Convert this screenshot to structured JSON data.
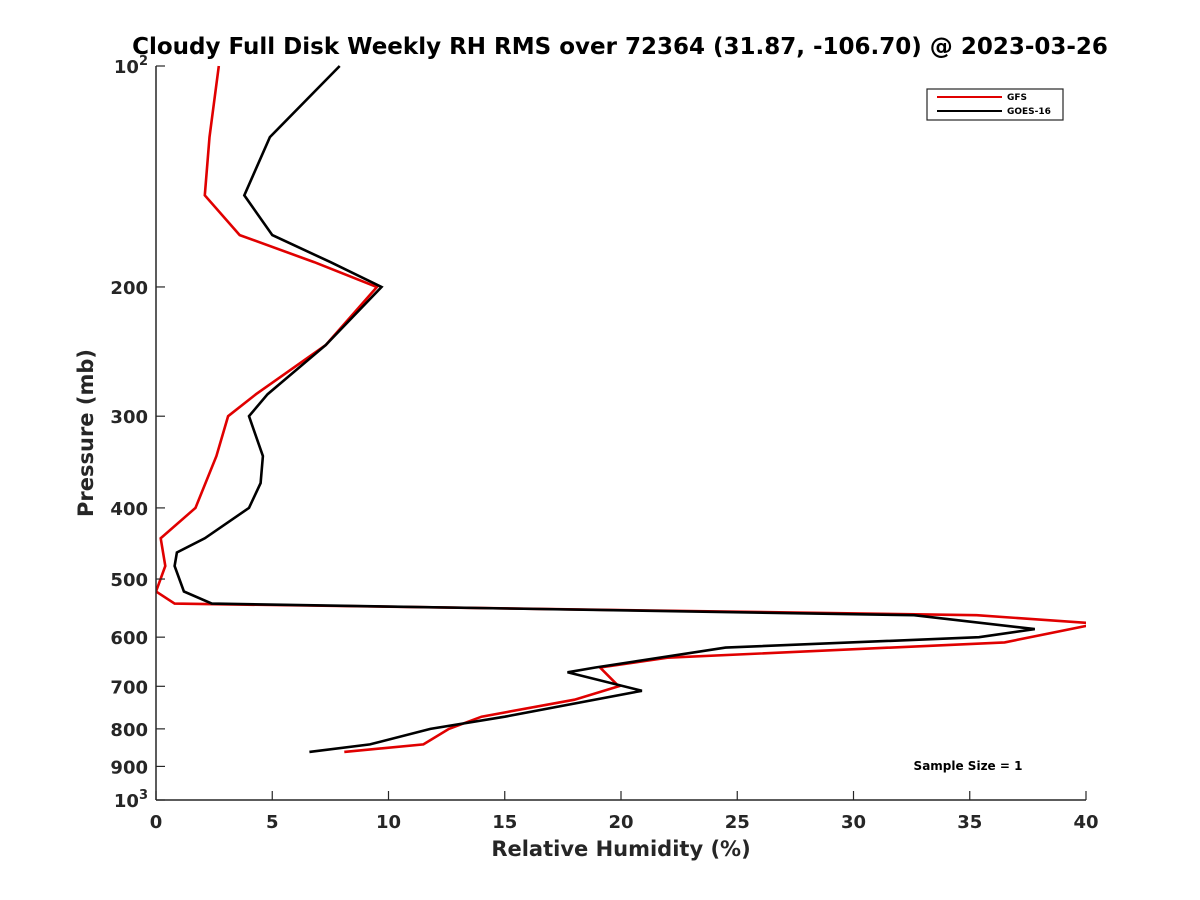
{
  "chart_data": {
    "type": "line",
    "title": "Cloudy Full Disk Weekly RH RMS over 72364 (31.87, -106.70) @ 2023-03-26",
    "xlabel": "Relative Humidity (%)",
    "ylabel": "Pressure (mb)",
    "xlim": [
      0,
      40
    ],
    "ylim": [
      100,
      1000
    ],
    "yscale": "log",
    "y_reversed": true,
    "grid": false,
    "legend_position": "top-right",
    "x_ticks": [
      0,
      5,
      10,
      15,
      20,
      25,
      30,
      35,
      40
    ],
    "y_ticks": [
      {
        "value": 100,
        "base": "10",
        "exp": "2"
      },
      {
        "value": 200,
        "label": "200"
      },
      {
        "value": 300,
        "label": "300"
      },
      {
        "value": 400,
        "label": "400"
      },
      {
        "value": 500,
        "label": "500"
      },
      {
        "value": 600,
        "label": "600"
      },
      {
        "value": 700,
        "label": "700"
      },
      {
        "value": 800,
        "label": "800"
      },
      {
        "value": 900,
        "label": "900"
      },
      {
        "value": 1000,
        "base": "10",
        "exp": "3"
      }
    ],
    "series": [
      {
        "name": "GFS",
        "color": "#e00000",
        "points": [
          [
            2.7,
            100
          ],
          [
            2.3,
            125
          ],
          [
            2.1,
            150
          ],
          [
            3.6,
            170
          ],
          [
            6.8,
            185
          ],
          [
            9.5,
            200
          ],
          [
            7.3,
            240
          ],
          [
            4.3,
            280
          ],
          [
            3.1,
            300
          ],
          [
            2.6,
            340
          ],
          [
            1.7,
            400
          ],
          [
            0.2,
            440
          ],
          [
            0.4,
            480
          ],
          [
            0.0,
            520
          ],
          [
            0.8,
            540
          ],
          [
            35.3,
            560
          ],
          [
            40.5,
            575
          ],
          [
            36.5,
            610
          ],
          [
            22.0,
            640
          ],
          [
            19.1,
            660
          ],
          [
            19.9,
            700
          ],
          [
            18.0,
            730
          ],
          [
            14.0,
            770
          ],
          [
            12.6,
            800
          ],
          [
            11.5,
            840
          ],
          [
            8.1,
            860
          ]
        ]
      },
      {
        "name": "GOES-16",
        "color": "#000000",
        "points": [
          [
            7.9,
            100
          ],
          [
            4.9,
            125
          ],
          [
            3.8,
            150
          ],
          [
            5.0,
            170
          ],
          [
            7.5,
            185
          ],
          [
            9.7,
            200
          ],
          [
            7.3,
            240
          ],
          [
            4.8,
            280
          ],
          [
            4.0,
            300
          ],
          [
            4.6,
            340
          ],
          [
            4.5,
            370
          ],
          [
            4.0,
            400
          ],
          [
            2.1,
            440
          ],
          [
            0.9,
            460
          ],
          [
            0.8,
            480
          ],
          [
            1.2,
            520
          ],
          [
            2.4,
            540
          ],
          [
            32.6,
            560
          ],
          [
            37.8,
            585
          ],
          [
            35.4,
            600
          ],
          [
            24.5,
            620
          ],
          [
            18.9,
            660
          ],
          [
            17.7,
            670
          ],
          [
            20.9,
            710
          ],
          [
            15.0,
            770
          ],
          [
            11.8,
            800
          ],
          [
            9.2,
            840
          ],
          [
            6.6,
            860
          ]
        ]
      }
    ],
    "annotation": "Sample Size = 1"
  }
}
